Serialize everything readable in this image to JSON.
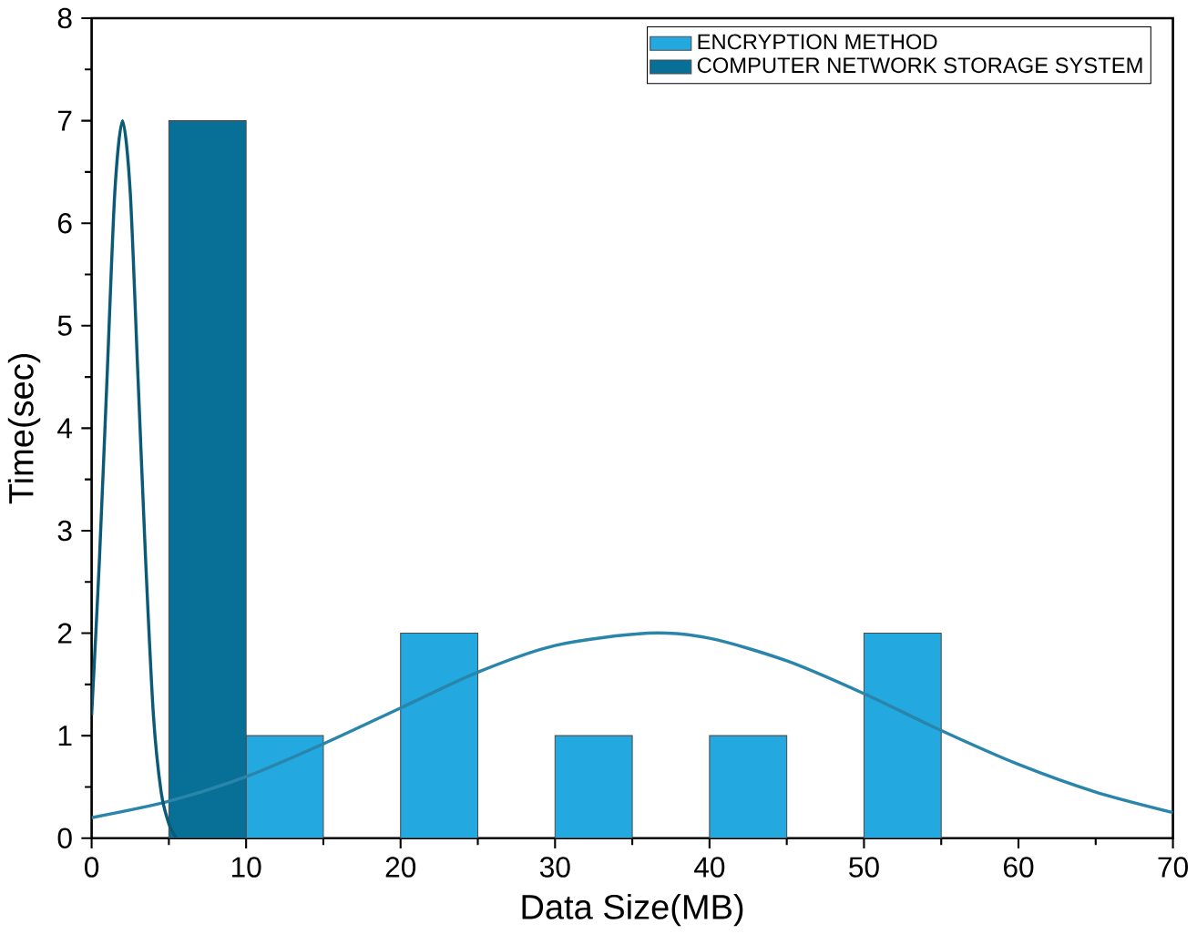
{
  "chart_data": {
    "type": "histogram",
    "xlabel": "Data Size(MB)",
    "ylabel": "Time(sec)",
    "xlim": [
      0,
      70
    ],
    "ylim": [
      0,
      8
    ],
    "xticks": [
      0,
      10,
      20,
      30,
      40,
      50,
      60,
      70
    ],
    "yticks": [
      0,
      1,
      2,
      3,
      4,
      5,
      6,
      7,
      8
    ],
    "legend": "top right",
    "series": [
      {
        "name": "ENCRYPTION METHOD",
        "color": "#23a8e0",
        "bins": [
          10,
          15,
          20,
          25,
          30,
          35,
          40,
          45,
          50,
          55
        ],
        "values": [
          1,
          0,
          2,
          0,
          1,
          0,
          1,
          0,
          2
        ]
      },
      {
        "name": "COMPUTER NETWORK STORAGE SYSTEM",
        "color": "#087096",
        "bins": [
          5,
          10
        ],
        "values": [
          7
        ]
      },
      {
        "type": "line",
        "color": "#2a85ab",
        "x": [
          0,
          5,
          10,
          15,
          20,
          25,
          30,
          36,
          40,
          45,
          50,
          55,
          60,
          65,
          70
        ],
        "values": [
          0.2,
          0.36,
          0.6,
          0.92,
          1.27,
          1.62,
          1.88,
          2.0,
          1.95,
          1.73,
          1.41,
          1.05,
          0.72,
          0.45,
          0.25
        ]
      },
      {
        "type": "line",
        "color": "#0b5a78",
        "x": [
          0,
          0.5,
          1,
          1.5,
          2,
          2.5,
          3,
          3.5,
          4,
          4.5,
          5,
          5.5
        ],
        "values": [
          1.2,
          2.7,
          4.5,
          6.3,
          7,
          6.3,
          4.5,
          2.7,
          1.2,
          0.45,
          0.14,
          0
        ]
      }
    ]
  }
}
